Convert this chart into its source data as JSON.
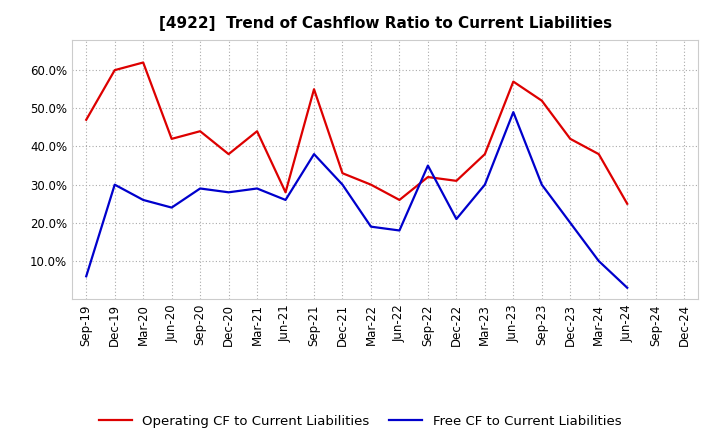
{
  "title": "[4922]  Trend of Cashflow Ratio to Current Liabilities",
  "x_labels": [
    "Sep-19",
    "Dec-19",
    "Mar-20",
    "Jun-20",
    "Sep-20",
    "Dec-20",
    "Mar-21",
    "Jun-21",
    "Sep-21",
    "Dec-21",
    "Mar-22",
    "Jun-22",
    "Sep-22",
    "Dec-22",
    "Mar-23",
    "Jun-23",
    "Sep-23",
    "Dec-23",
    "Mar-24",
    "Jun-24",
    "Sep-24",
    "Dec-24"
  ],
  "operating_cf": [
    0.47,
    0.6,
    0.62,
    0.42,
    0.44,
    0.38,
    0.44,
    0.28,
    0.55,
    0.33,
    0.3,
    0.26,
    0.32,
    0.31,
    0.38,
    0.57,
    0.52,
    0.42,
    0.38,
    0.25,
    null,
    null
  ],
  "free_cf": [
    0.06,
    0.3,
    0.26,
    0.24,
    0.29,
    0.28,
    0.29,
    0.26,
    0.38,
    0.3,
    0.19,
    0.18,
    0.35,
    0.21,
    0.3,
    0.49,
    0.3,
    0.2,
    0.1,
    0.03,
    null,
    null
  ],
  "operating_color": "#dd0000",
  "free_color": "#0000cc",
  "background_color": "#ffffff",
  "grid_color": "#aaaaaa",
  "ylim": [
    0.0,
    0.68
  ],
  "yticks": [
    0.1,
    0.2,
    0.3,
    0.4,
    0.5,
    0.6
  ],
  "legend_operating": "Operating CF to Current Liabilities",
  "legend_free": "Free CF to Current Liabilities",
  "title_fontsize": 11,
  "tick_fontsize": 8.5,
  "legend_fontsize": 9.5,
  "line_width": 1.6
}
